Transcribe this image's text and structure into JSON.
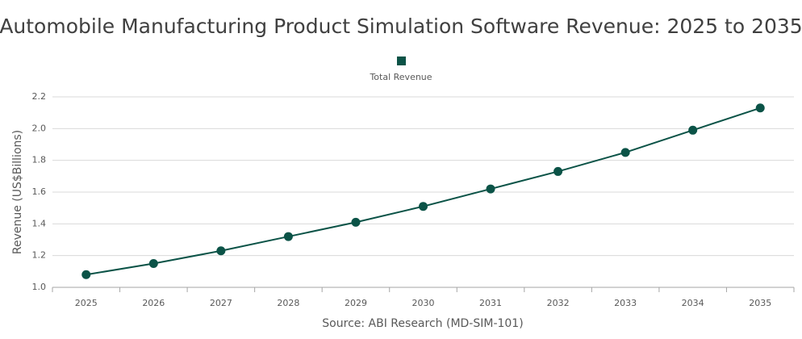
{
  "chart_data": {
    "type": "line",
    "title": "Automobile Manufacturing Product Simulation Software Revenue: 2025 to 2035",
    "ylabel": "Revenue (US$Billions)",
    "xlabel": "Source: ABI Research (MD-SIM-101)",
    "categories": [
      "2025",
      "2026",
      "2027",
      "2028",
      "2029",
      "2030",
      "2031",
      "2032",
      "2033",
      "2034",
      "2035"
    ],
    "series": [
      {
        "name": "Total Revenue",
        "color": "#0b5347",
        "values": [
          1.08,
          1.15,
          1.23,
          1.32,
          1.41,
          1.51,
          1.62,
          1.73,
          1.85,
          1.99,
          2.13
        ]
      }
    ],
    "ylim": [
      1.0,
      2.2
    ],
    "yticks": [
      {
        "value": 1.0,
        "label": "1.0"
      },
      1.2,
      1.4,
      1.6,
      1.8,
      {
        "value": 2.0,
        "label": "2.0"
      },
      2.2
    ],
    "grid": true,
    "legend": "top"
  }
}
